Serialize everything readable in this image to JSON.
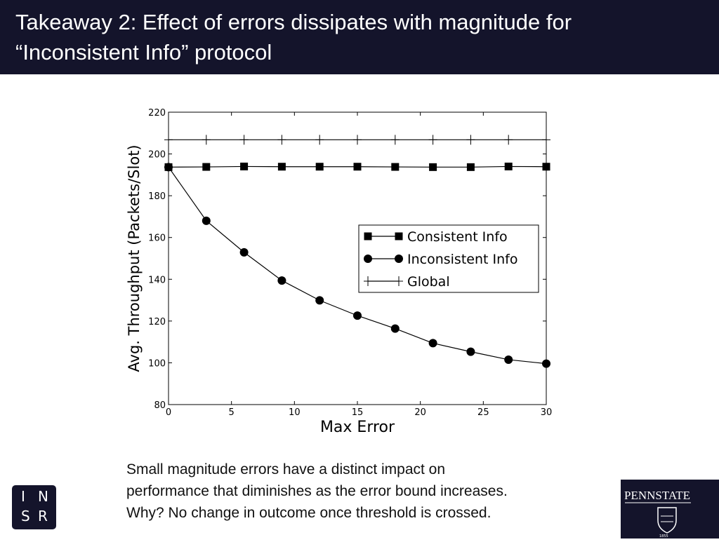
{
  "slide": {
    "title_lines": [
      "Takeaway 2:  Effect of errors dissipates with magnitude for",
      "“Inconsistent Info” protocol"
    ],
    "caption_lines": [
      "Small magnitude errors have a distinct impact on",
      "performance that diminishes as the error bound increases.",
      "Why?  No change in outcome once threshold is crossed."
    ],
    "logo_left": {
      "letters": [
        "I",
        "N",
        "S",
        "R"
      ]
    },
    "logo_right": {
      "text": "PENNSTATE",
      "year": "1855"
    },
    "colors": {
      "header_bg": "#14142b",
      "header_text": "#ffffff",
      "series": "#000000"
    }
  },
  "chart_data": {
    "type": "line",
    "xlabel": "Max Error",
    "ylabel": "Avg. Throughput (Packets/Slot)",
    "xlim": [
      0,
      30
    ],
    "ylim": [
      80,
      220
    ],
    "x_ticks": [
      "0",
      "5",
      "10",
      "15",
      "20",
      "25",
      "30"
    ],
    "y_ticks": [
      "80",
      "100",
      "120",
      "140",
      "160",
      "180",
      "200",
      "220"
    ],
    "grid": false,
    "legend_position": "middle-right",
    "x": [
      0,
      3,
      6,
      9,
      12,
      15,
      18,
      21,
      24,
      27,
      30
    ],
    "series": [
      {
        "name": "Consistent Info",
        "marker": "square",
        "values": [
          193.7,
          193.8,
          194.0,
          193.9,
          193.9,
          193.9,
          193.8,
          193.7,
          193.7,
          194.0,
          193.9
        ]
      },
      {
        "name": "Inconsistent Info",
        "marker": "circle",
        "values": [
          193.7,
          168.0,
          152.9,
          139.4,
          129.9,
          122.6,
          116.4,
          109.4,
          105.3,
          101.5,
          99.6
        ]
      },
      {
        "name": "Global",
        "marker": "plus",
        "values": [
          206.8,
          206.8,
          206.8,
          206.8,
          206.8,
          206.8,
          206.8,
          206.8,
          206.8,
          206.8,
          206.8
        ]
      }
    ]
  }
}
